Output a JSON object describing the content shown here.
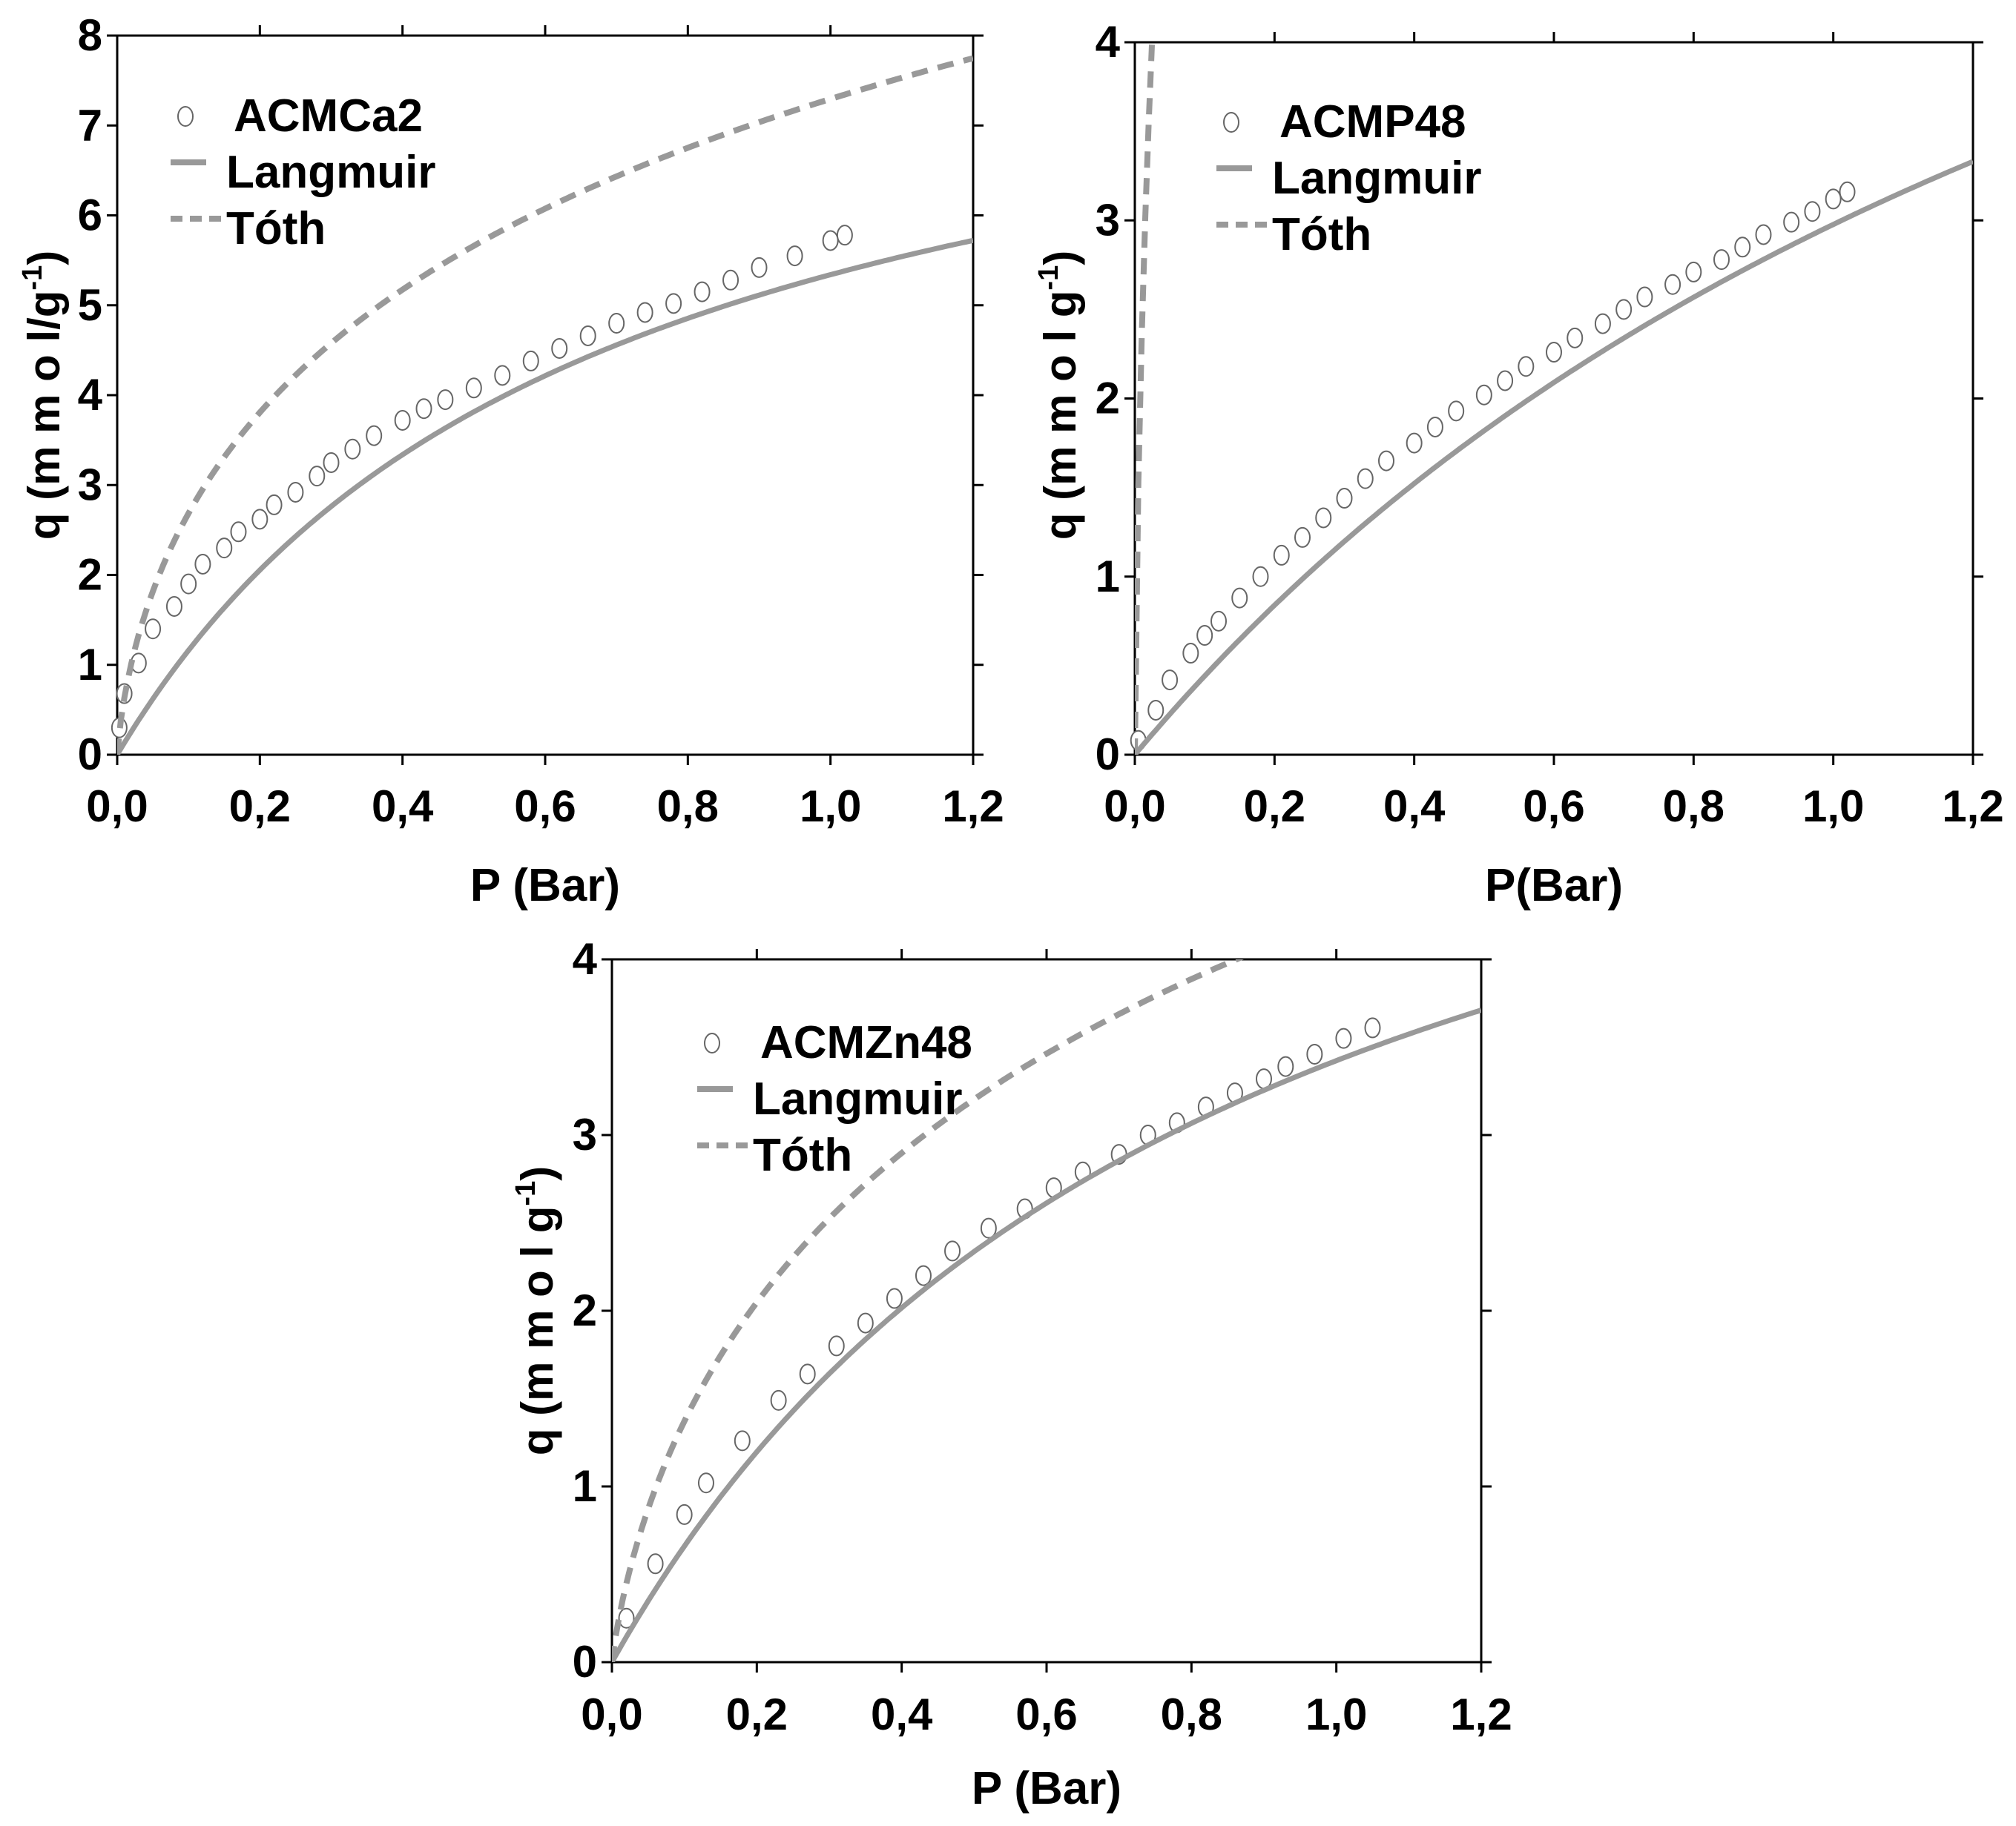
{
  "chart_data": [
    {
      "type": "scatter",
      "xlabel": "P (Bar)",
      "ylabel": {
        "main": "q (m m o l/g",
        "sup": "-1",
        "close": ")"
      },
      "xlim": [
        0,
        1.2
      ],
      "ylim": [
        0,
        8
      ],
      "xticks": [
        "0,0",
        "0,2",
        "0,4",
        "0,6",
        "0,8",
        "1,0",
        "1,2"
      ],
      "yticks": [
        "0",
        "1",
        "2",
        "3",
        "4",
        "5",
        "6",
        "7",
        "8"
      ],
      "legend_position": "top-left",
      "series": [
        {
          "name": "ACMCa2",
          "kind": "points",
          "x": [
            0.003,
            0.01,
            0.03,
            0.05,
            0.08,
            0.1,
            0.12,
            0.15,
            0.17,
            0.2,
            0.22,
            0.25,
            0.28,
            0.3,
            0.33,
            0.36,
            0.4,
            0.43,
            0.46,
            0.5,
            0.54,
            0.58,
            0.62,
            0.66,
            0.7,
            0.74,
            0.78,
            0.82,
            0.86,
            0.9,
            0.95,
            1.0,
            1.02
          ],
          "y": [
            0.3,
            0.68,
            1.02,
            1.4,
            1.65,
            1.9,
            2.12,
            2.3,
            2.48,
            2.62,
            2.78,
            2.92,
            3.1,
            3.25,
            3.4,
            3.55,
            3.72,
            3.85,
            3.95,
            4.08,
            4.22,
            4.38,
            4.52,
            4.66,
            4.8,
            4.92,
            5.02,
            5.15,
            5.28,
            5.42,
            5.55,
            5.72,
            5.78
          ]
        },
        {
          "name": "Langmuir",
          "kind": "line",
          "model": "langmuir",
          "qm": 8.9,
          "b": 1.5
        },
        {
          "name": "Tóth",
          "kind": "dashed",
          "model": "toth",
          "qm": 23.7,
          "b": 6.83,
          "t": 0.35
        }
      ]
    },
    {
      "type": "scatter",
      "xlabel": "P(Bar)",
      "ylabel": {
        "main": "q (m m o l g",
        "sup": "-1",
        "close": ")"
      },
      "xlim": [
        0,
        1.2
      ],
      "ylim": [
        0,
        4
      ],
      "xticks": [
        "0,0",
        "0,2",
        "0,4",
        "0,6",
        "0,8",
        "1,0",
        "1,2"
      ],
      "yticks": [
        "0",
        "1",
        "2",
        "3",
        "4"
      ],
      "legend_position": "top-left",
      "series": [
        {
          "name": "ACMP48",
          "kind": "points",
          "x": [
            0.005,
            0.03,
            0.05,
            0.08,
            0.1,
            0.12,
            0.15,
            0.18,
            0.21,
            0.24,
            0.27,
            0.3,
            0.33,
            0.36,
            0.4,
            0.43,
            0.46,
            0.5,
            0.53,
            0.56,
            0.6,
            0.63,
            0.67,
            0.7,
            0.73,
            0.77,
            0.8,
            0.84,
            0.87,
            0.9,
            0.94,
            0.97,
            1.0,
            1.02
          ],
          "y": [
            0.08,
            0.25,
            0.42,
            0.57,
            0.67,
            0.75,
            0.88,
            1.0,
            1.12,
            1.22,
            1.33,
            1.44,
            1.55,
            1.65,
            1.75,
            1.84,
            1.93,
            2.02,
            2.1,
            2.18,
            2.26,
            2.34,
            2.42,
            2.5,
            2.57,
            2.64,
            2.71,
            2.78,
            2.85,
            2.92,
            2.99,
            3.05,
            3.12,
            3.16
          ]
        },
        {
          "name": "Langmuir",
          "kind": "line",
          "model": "langmuir",
          "qm": 8.2,
          "b": 0.57
        },
        {
          "name": "Tóth",
          "kind": "dashed",
          "model": "toth",
          "qm": 57.0,
          "b": 21.0,
          "t": 0.3
        }
      ]
    },
    {
      "type": "scatter",
      "xlabel": "P (Bar)",
      "ylabel": {
        "main": "q (m m o l g",
        "sup": "-1",
        "close": ")"
      },
      "xlim": [
        0,
        1.2
      ],
      "ylim": [
        0,
        4
      ],
      "xticks": [
        "0,0",
        "0,2",
        "0,4",
        "0,6",
        "0,8",
        "1,0",
        "1,2"
      ],
      "yticks": [
        "0",
        "1",
        "2",
        "3",
        "4"
      ],
      "legend_position": "top-left",
      "series": [
        {
          "name": "ACMZn48",
          "kind": "points",
          "x": [
            0.02,
            0.06,
            0.1,
            0.13,
            0.18,
            0.23,
            0.27,
            0.31,
            0.35,
            0.39,
            0.43,
            0.47,
            0.52,
            0.57,
            0.61,
            0.65,
            0.7,
            0.74,
            0.78,
            0.82,
            0.86,
            0.9,
            0.93,
            0.97,
            1.01,
            1.05
          ],
          "y": [
            0.25,
            0.56,
            0.84,
            1.02,
            1.26,
            1.49,
            1.64,
            1.8,
            1.93,
            2.07,
            2.2,
            2.34,
            2.47,
            2.58,
            2.7,
            2.79,
            2.89,
            3.0,
            3.07,
            3.16,
            3.24,
            3.32,
            3.39,
            3.46,
            3.55,
            3.61
          ]
        },
        {
          "name": "Langmuir",
          "kind": "line",
          "model": "langmuir",
          "qm": 6.4,
          "b": 1.15
        },
        {
          "name": "Tóth",
          "kind": "dashed",
          "model": "toth",
          "qm": 11.5,
          "b": 3.5,
          "t": 0.45
        }
      ]
    }
  ],
  "style": {
    "line_color": "#999999",
    "marker_color": "#666666",
    "axis_color": "#000000"
  }
}
